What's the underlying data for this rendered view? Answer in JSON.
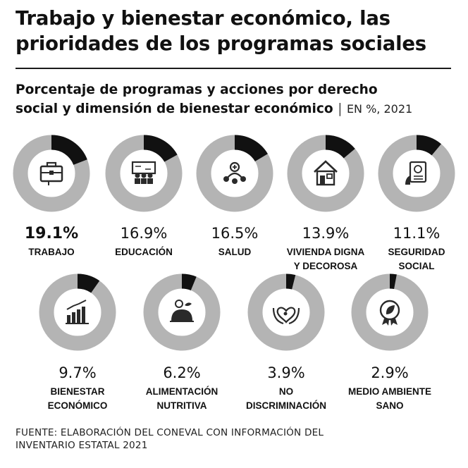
{
  "header": {
    "title_line1": "Trabajo y bienestar económico, las",
    "title_line2": "prioridades de los programas sociales",
    "subtitle_line1": "Porcentaje de programas y acciones por derecho",
    "subtitle_line2": "social y dimensión de bienestar económico",
    "separator": "|",
    "unit": "EN %, 2021"
  },
  "source": {
    "line1": "FUENTE: ELABORACIÓN DEL CONEVAL CON INFORMACIÓN DEL",
    "line2": "INVENTARIO ESTATAL 2021"
  },
  "colors": {
    "filled": "#111111",
    "remainder": "#b4b4b4",
    "icon": "#2a2a2a"
  },
  "chart_data": {
    "type": "pie",
    "title": "Porcentaje de programas y acciones por derecho social y dimensión de bienestar económico",
    "unit": "EN %, 2021",
    "max": 100,
    "categories": [
      {
        "label_lines": [
          "TRABAJO"
        ],
        "value": 19.1,
        "value_label": "19.1%",
        "highlight": true,
        "icon": "briefcase-icon"
      },
      {
        "label_lines": [
          "EDUCACIÓN"
        ],
        "value": 16.9,
        "value_label": "16.9%",
        "highlight": false,
        "icon": "classroom-icon"
      },
      {
        "label_lines": [
          "SALUD"
        ],
        "value": 16.5,
        "value_label": "16.5%",
        "highlight": false,
        "icon": "health-people-icon"
      },
      {
        "label_lines": [
          "VIVIENDA DIGNA",
          "Y DECOROSA"
        ],
        "value": 13.9,
        "value_label": "13.9%",
        "highlight": false,
        "icon": "house-icon"
      },
      {
        "label_lines": [
          "SEGURIDAD",
          "SOCIAL"
        ],
        "value": 11.1,
        "value_label": "11.1%",
        "highlight": false,
        "icon": "social-security-icon"
      },
      {
        "label_lines": [
          "BIENESTAR",
          "ECONÓMICO"
        ],
        "value": 9.7,
        "value_label": "9.7%",
        "highlight": false,
        "icon": "growth-chart-icon"
      },
      {
        "label_lines": [
          "ALIMENTACIÓN",
          "NUTRITIVA"
        ],
        "value": 6.2,
        "value_label": "6.2%",
        "highlight": false,
        "icon": "food-icon"
      },
      {
        "label_lines": [
          "NO",
          "DISCRIMINACIÓN"
        ],
        "value": 3.9,
        "value_label": "3.9%",
        "highlight": false,
        "icon": "hands-heart-icon"
      },
      {
        "label_lines": [
          "MEDIO AMBIENTE",
          "SANO"
        ],
        "value": 2.9,
        "value_label": "2.9%",
        "highlight": false,
        "icon": "eco-badge-icon"
      }
    ]
  }
}
